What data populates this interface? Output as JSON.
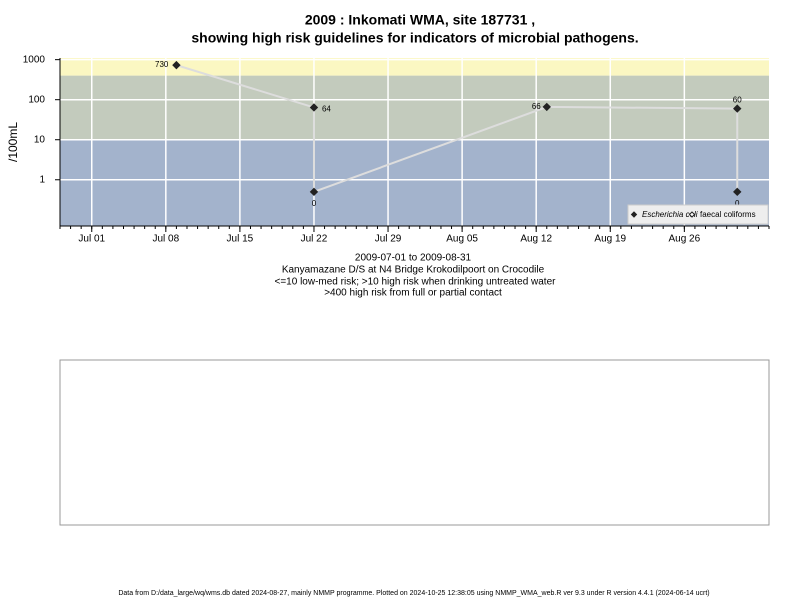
{
  "chart_data": {
    "type": "line",
    "title": "2009 : Inkomati WMA, site 187731 ,",
    "subtitle": "showing high risk guidelines for indicators of microbial pathogens.",
    "y_label": "/100mL",
    "date_range": "2009-07-01 to 2009-08-31",
    "site_name": "Kanyamazane D/S at N4 Bridge Krokodilpoort on Crocodile",
    "guideline_1": "<=10 low-med risk; >10 high risk when drinking untreated water",
    "guideline_2": ">400 high risk from full or partial contact",
    "log_y": true,
    "grid": true,
    "legend_position": "bottom-right",
    "bands": [
      {
        "from": 0.07,
        "to": 10,
        "color": "#a3b3cc"
      },
      {
        "from": 10,
        "to": 400,
        "color": "#c3cbbd"
      },
      {
        "from": 400,
        "to": 1100,
        "color": "#fbf7c2"
      }
    ],
    "x": [
      "2009-07-09",
      "2009-07-22",
      "2009-07-22",
      "2009-08-13",
      "2009-08-31",
      "2009-08-31"
    ],
    "xlim": [
      "2009-06-28",
      "2009-09-03"
    ],
    "xticks": [
      {
        "value": "2009-07-01",
        "label": "Jul 01"
      },
      {
        "value": "2009-07-08",
        "label": "Jul 08"
      },
      {
        "value": "2009-07-15",
        "label": "Jul 15"
      },
      {
        "value": "2009-07-22",
        "label": "Jul 22"
      },
      {
        "value": "2009-07-29",
        "label": "Jul 29"
      },
      {
        "value": "2009-08-05",
        "label": "Aug 05"
      },
      {
        "value": "2009-08-12",
        "label": "Aug 12"
      },
      {
        "value": "2009-08-19",
        "label": "Aug 19"
      },
      {
        "value": "2009-08-26",
        "label": "Aug 26"
      }
    ],
    "ylim": [
      0.07,
      1100
    ],
    "yticks": [
      1,
      10,
      100,
      1000
    ],
    "series": [
      {
        "name": "Escherichia coli",
        "color": "#222222",
        "line_color": "#dddddd",
        "marker": "filled",
        "values": [
          730,
          64,
          0.5,
          66,
          60,
          0.5
        ],
        "value_labels": [
          "730",
          "64",
          "0",
          "66",
          "60",
          "0"
        ]
      },
      {
        "name": "faecal coliforms",
        "color": "#222222",
        "marker": "open",
        "values": [
          null,
          null,
          null,
          null,
          null,
          null
        ]
      }
    ],
    "footer": "Data from D:/data_large/wq/wms.db dated 2024-08-27, mainly NMMP programme. Plotted on 2024-10-25 12:38:05 using NMMP_WMA_web.R ver 9.3 under R version 4.4.1 (2024-06-14 ucrt)"
  }
}
